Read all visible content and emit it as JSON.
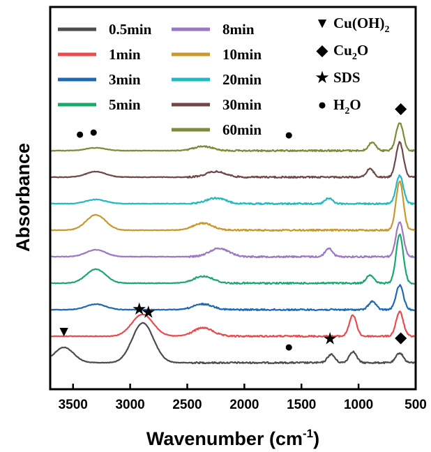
{
  "chart_data": {
    "type": "line",
    "title": "",
    "xlabel": "Wavenumber (cm",
    "xlabel_sup": "-1",
    "xlabel_close": ")",
    "ylabel": "Absorbance",
    "xlim": [
      3700,
      500
    ],
    "x_reversed": true,
    "x_ticks": [
      "3500",
      "3000",
      "2500",
      "2000",
      "1500",
      "1000",
      "500"
    ],
    "x_tick_values": [
      3500,
      3000,
      2500,
      2000,
      1500,
      1000,
      500
    ],
    "y_ticks_shown": false,
    "grid": false,
    "legend_placement": "top-left",
    "series": [
      {
        "name": "0.5min",
        "color": "#4a4d4f",
        "offset": 0,
        "peaks": [
          [
            3580,
            0.022
          ],
          [
            2920,
            0.034
          ],
          [
            2850,
            0.028
          ],
          [
            1240,
            0.012
          ],
          [
            1050,
            0.016
          ],
          [
            640,
            0.014
          ]
        ]
      },
      {
        "name": "1min",
        "color": "#e84c4e",
        "offset": 1,
        "peaks": [
          [
            2920,
            0.02
          ],
          [
            2850,
            0.014
          ],
          [
            2360,
            0.012
          ],
          [
            1050,
            0.03
          ],
          [
            640,
            0.035
          ]
        ]
      },
      {
        "name": "3min",
        "color": "#1f68b4",
        "offset": 2,
        "peaks": [
          [
            3300,
            0.008
          ],
          [
            2360,
            0.008
          ],
          [
            880,
            0.012
          ],
          [
            640,
            0.035
          ]
        ]
      },
      {
        "name": "5min",
        "color": "#1ca86c",
        "offset": 3,
        "peaks": [
          [
            3300,
            0.02
          ],
          [
            2360,
            0.01
          ],
          [
            900,
            0.012
          ],
          [
            640,
            0.07
          ]
        ]
      },
      {
        "name": "8min",
        "color": "#9b78c4",
        "offset": 4,
        "peaks": [
          [
            3300,
            0.01
          ],
          [
            2220,
            0.012
          ],
          [
            1260,
            0.012
          ],
          [
            640,
            0.05
          ]
        ]
      },
      {
        "name": "10min",
        "color": "#c9982e",
        "offset": 5,
        "peaks": [
          [
            3300,
            0.022
          ],
          [
            2360,
            0.01
          ],
          [
            640,
            0.07
          ]
        ]
      },
      {
        "name": "20min",
        "color": "#23b9c2",
        "offset": 6,
        "peaks": [
          [
            3300,
            0.006
          ],
          [
            2250,
            0.008
          ],
          [
            1260,
            0.008
          ],
          [
            640,
            0.04
          ]
        ]
      },
      {
        "name": "30min",
        "color": "#6e4748",
        "offset": 7,
        "peaks": [
          [
            3300,
            0.008
          ],
          [
            2250,
            0.008
          ],
          [
            900,
            0.012
          ],
          [
            640,
            0.05
          ]
        ]
      },
      {
        "name": "60min",
        "color": "#7a8c38",
        "offset": 8,
        "peaks": [
          [
            3300,
            0.004
          ],
          [
            2360,
            0.006
          ],
          [
            880,
            0.012
          ],
          [
            640,
            0.04
          ]
        ]
      }
    ],
    "marker_legend": [
      {
        "symbol": "▼",
        "label": "Cu(OH)",
        "sub": "2",
        "label_after": ""
      },
      {
        "symbol": "◆",
        "label": "Cu",
        "sub": "2",
        "label_after": "O"
      },
      {
        "symbol": "★",
        "label": "SDS",
        "sub": "",
        "label_after": ""
      },
      {
        "symbol": "●",
        "label": "H",
        "sub": "2",
        "label_after": "O"
      }
    ],
    "annotations": [
      {
        "symbol": "●",
        "x": 3440,
        "series": 8
      },
      {
        "symbol": "●",
        "x": 3320,
        "series": 8
      },
      {
        "symbol": "●",
        "x": 1610,
        "series": 8
      },
      {
        "symbol": "◆",
        "x": 630,
        "series": 8
      },
      {
        "symbol": "▼",
        "x": 3580,
        "series": 0
      },
      {
        "symbol": "★",
        "x": 2920,
        "series": 0
      },
      {
        "symbol": "★",
        "x": 2840,
        "series": 0
      },
      {
        "symbol": "●",
        "x": 1610,
        "series": 0
      },
      {
        "symbol": "★",
        "x": 1250,
        "series": 0
      },
      {
        "symbol": "◆",
        "x": 630,
        "series": 0
      }
    ]
  }
}
